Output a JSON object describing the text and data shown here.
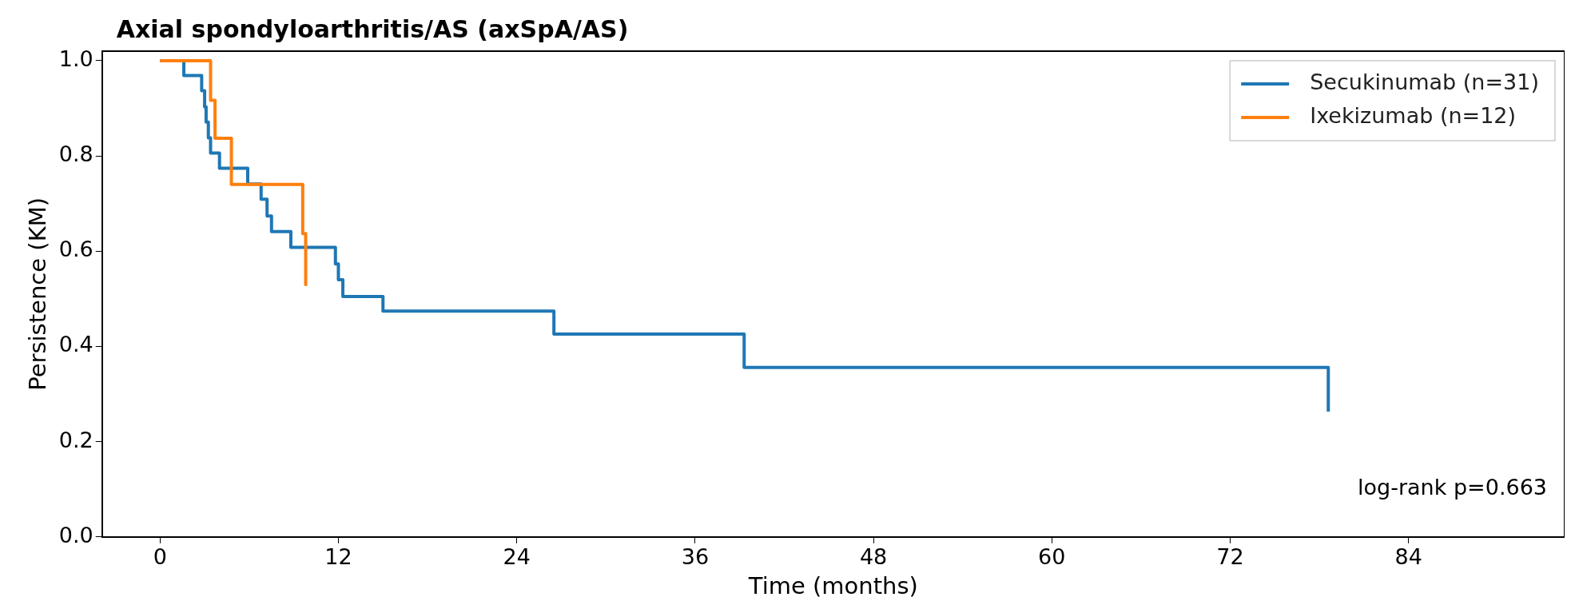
{
  "chart_data": {
    "type": "step",
    "title": "Axial spondyloarthritis/AS (axSpA/AS)",
    "xlabel": "Time (months)",
    "ylabel": "Persistence (KM)",
    "series": [
      {
        "name": "Secukinumab (n=31)",
        "color": "#1f77b4",
        "x": [
          0,
          1.6,
          2.8,
          3.0,
          3.1,
          3.25,
          3.4,
          4.0,
          5.9,
          6.8,
          7.2,
          7.5,
          8.8,
          11.8,
          12.0,
          12.3,
          15.0,
          26.5,
          39.3,
          78.6
        ],
        "values": [
          1.0,
          0.969,
          0.937,
          0.903,
          0.871,
          0.838,
          0.806,
          0.774,
          0.741,
          0.709,
          0.674,
          0.641,
          0.608,
          0.573,
          0.54,
          0.505,
          0.474,
          0.426,
          0.356,
          0.263
        ]
      },
      {
        "name": "Ixekizumab (n=12)",
        "color": "#ff7f0e",
        "x": [
          0,
          3.4,
          3.7,
          4.8,
          9.6,
          9.8
        ],
        "values": [
          1.0,
          0.917,
          0.837,
          0.74,
          0.637,
          0.527
        ]
      }
    ],
    "xlim": [
      -3.9,
      94.5
    ],
    "xticks": [
      0,
      12,
      24,
      36,
      48,
      60,
      72,
      84
    ],
    "ylim": [
      0,
      1.02
    ],
    "yticks": [
      {
        "value": 0,
        "label": "0.0"
      },
      0.2,
      0.4,
      0.6,
      0.8,
      {
        "value": 1,
        "label": "1.0"
      }
    ],
    "annotations": [
      "log-rank p=0.663"
    ],
    "legend": "top right",
    "grid": false,
    "line_style": "solid"
  }
}
